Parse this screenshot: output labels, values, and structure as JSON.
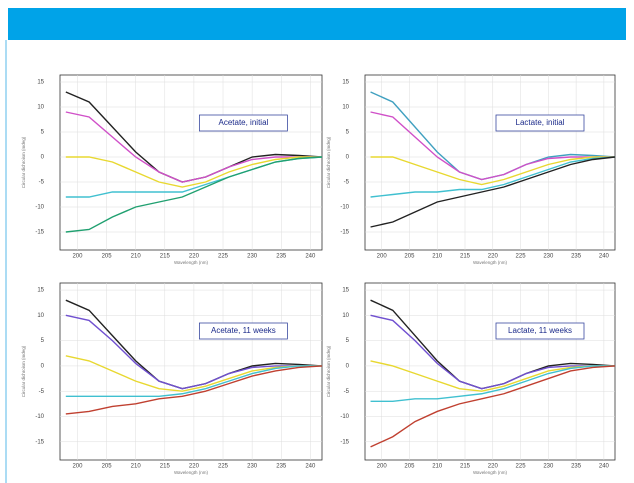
{
  "chart_data": [
    {
      "type": "line",
      "annotation": "Acetate, initial",
      "y_label": "Circular dichroism (mdeg)",
      "x_label": "Wavelength (nm)",
      "x": [
        198,
        202,
        206,
        210,
        214,
        218,
        222,
        226,
        230,
        234,
        238,
        242
      ],
      "xlim": [
        197,
        242
      ],
      "xticks": [
        200,
        205,
        210,
        215,
        220,
        225,
        230,
        235,
        240
      ],
      "ylim": [
        -18.6,
        16.4
      ],
      "yticks": [
        15,
        10,
        5,
        0,
        -5,
        -10,
        -15
      ],
      "grid": true,
      "series": [
        {
          "color": "#222222",
          "values": [
            13,
            11,
            6,
            1,
            -3,
            -5,
            -4,
            -2,
            0,
            0.5,
            0.3,
            0
          ]
        },
        {
          "color": "#d050c8",
          "values": [
            9,
            8,
            4,
            0,
            -3,
            -5,
            -4,
            -2,
            -0.5,
            0,
            0,
            0
          ]
        },
        {
          "color": "#e8d830",
          "values": [
            0,
            0,
            -1,
            -3,
            -5,
            -6,
            -5,
            -3,
            -1.5,
            -0.5,
            0,
            0
          ]
        },
        {
          "color": "#40c0d0",
          "values": [
            -8,
            -8,
            -7,
            -7,
            -7,
            -7,
            -5.5,
            -4,
            -2.5,
            -1,
            -0.3,
            0
          ]
        },
        {
          "color": "#20a070",
          "values": [
            -15,
            -14.5,
            -12,
            -10,
            -9,
            -8,
            -6,
            -4,
            -2.5,
            -1,
            -0.3,
            0
          ]
        }
      ]
    },
    {
      "type": "line",
      "annotation": "Lactate, initial",
      "y_label": "Circular dichroism (mdeg)",
      "x_label": "Wavelength (nm)",
      "x": [
        198,
        202,
        206,
        210,
        214,
        218,
        222,
        226,
        230,
        234,
        238,
        242
      ],
      "xlim": [
        197,
        242
      ],
      "xticks": [
        200,
        205,
        210,
        215,
        220,
        225,
        230,
        235,
        240
      ],
      "ylim": [
        -18.6,
        16.4
      ],
      "yticks": [
        15,
        10,
        5,
        0,
        -5,
        -10,
        -15
      ],
      "grid": true,
      "series": [
        {
          "color": "#40a0c0",
          "values": [
            13,
            11,
            6,
            1,
            -3,
            -4.5,
            -3.5,
            -1.5,
            0,
            0.5,
            0.3,
            0
          ]
        },
        {
          "color": "#d050c8",
          "values": [
            9,
            8,
            4,
            0,
            -3,
            -4.5,
            -3.5,
            -1.5,
            -0.3,
            0,
            0,
            0
          ]
        },
        {
          "color": "#e8d830",
          "values": [
            0,
            0,
            -1.5,
            -3,
            -4.5,
            -5.5,
            -4.5,
            -3,
            -1.5,
            -0.5,
            0,
            0
          ]
        },
        {
          "color": "#40c0d0",
          "values": [
            -8,
            -7.5,
            -7,
            -7,
            -6.5,
            -6.5,
            -5.5,
            -4,
            -2.5,
            -1,
            -0.3,
            0
          ]
        },
        {
          "color": "#222222",
          "values": [
            -14,
            -13,
            -11,
            -9,
            -8,
            -7,
            -6,
            -4.5,
            -3,
            -1.5,
            -0.5,
            0
          ]
        }
      ]
    },
    {
      "type": "line",
      "annotation": "Acetate, 11 weeks",
      "y_label": "Circular dichroism (mdeg)",
      "x_label": "Wavelength (nm)",
      "x": [
        198,
        202,
        206,
        210,
        214,
        218,
        222,
        226,
        230,
        234,
        238,
        242
      ],
      "xlim": [
        197,
        242
      ],
      "xticks": [
        200,
        205,
        210,
        215,
        220,
        225,
        230,
        235,
        240
      ],
      "ylim": [
        -18.6,
        16.4
      ],
      "yticks": [
        15,
        10,
        5,
        0,
        -5,
        -10,
        -15
      ],
      "grid": true,
      "series": [
        {
          "color": "#222222",
          "values": [
            13,
            11,
            6,
            1,
            -3,
            -4.5,
            -3.5,
            -1.5,
            0,
            0.5,
            0.3,
            0
          ]
        },
        {
          "color": "#7050d0",
          "values": [
            10,
            9,
            5,
            0.5,
            -3,
            -4.5,
            -3.5,
            -1.5,
            -0.3,
            0,
            0,
            0
          ]
        },
        {
          "color": "#e8d830",
          "values": [
            2,
            1,
            -1,
            -3,
            -4.5,
            -5,
            -4,
            -2.5,
            -1,
            -0.3,
            0,
            0
          ]
        },
        {
          "color": "#40c0d0",
          "values": [
            -6,
            -6,
            -6,
            -6,
            -6,
            -5.5,
            -4.5,
            -3,
            -1.5,
            -0.5,
            0,
            0
          ]
        },
        {
          "color": "#c04030",
          "values": [
            -9.5,
            -9,
            -8,
            -7.5,
            -6.5,
            -6,
            -5,
            -3.5,
            -2,
            -1,
            -0.3,
            0
          ]
        }
      ]
    },
    {
      "type": "line",
      "annotation": "Lactate, 11 weeks",
      "y_label": "Circular dichroism (mdeg)",
      "x_label": "Wavelength (nm)",
      "x": [
        198,
        202,
        206,
        210,
        214,
        218,
        222,
        226,
        230,
        234,
        238,
        242
      ],
      "xlim": [
        197,
        242
      ],
      "xticks": [
        200,
        205,
        210,
        215,
        220,
        225,
        230,
        235,
        240
      ],
      "ylim": [
        -18.6,
        16.4
      ],
      "yticks": [
        15,
        10,
        5,
        0,
        -5,
        -10,
        -15
      ],
      "grid": true,
      "series": [
        {
          "color": "#222222",
          "values": [
            13,
            11,
            6,
            1,
            -3,
            -4.5,
            -3.5,
            -1.5,
            0,
            0.5,
            0.3,
            0
          ]
        },
        {
          "color": "#7050d0",
          "values": [
            10,
            9,
            5,
            0.5,
            -3,
            -4.5,
            -3.5,
            -1.5,
            -0.3,
            0,
            0,
            0
          ]
        },
        {
          "color": "#e8d830",
          "values": [
            1,
            0,
            -1.5,
            -3,
            -4.5,
            -5,
            -4,
            -2.5,
            -1,
            -0.3,
            0,
            0
          ]
        },
        {
          "color": "#40c0d0",
          "values": [
            -7,
            -7,
            -6.5,
            -6.5,
            -6,
            -5.5,
            -4.5,
            -3,
            -1.5,
            -0.5,
            0,
            0
          ]
        },
        {
          "color": "#c04030",
          "values": [
            -16,
            -14,
            -11,
            -9,
            -7.5,
            -6.5,
            -5.5,
            -4,
            -2.5,
            -1,
            -0.3,
            0
          ]
        }
      ]
    }
  ]
}
